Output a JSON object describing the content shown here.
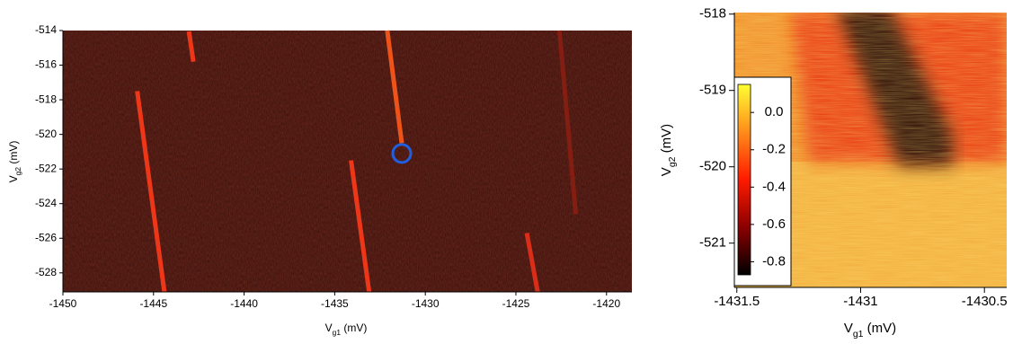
{
  "chart_data": [
    {
      "type": "heatmap",
      "xlabel": {
        "main": "V",
        "sub": "g1",
        "unit": " (mV)"
      },
      "ylabel": {
        "main": "V",
        "sub": "g2",
        "unit": " (mV)"
      },
      "xlim": [
        -1450,
        -1418.6
      ],
      "ylim": [
        -529.1,
        -514
      ],
      "xticks": [
        -1450,
        -1445,
        -1440,
        -1435,
        -1430,
        -1425,
        -1420
      ],
      "yticks": [
        -528,
        -526,
        -524,
        -522,
        -520,
        -518,
        -516,
        -514
      ],
      "background": "#3a100b",
      "stripes": [
        {
          "x": [
            -1443.05,
            -1442.8
          ],
          "y": [
            -514.05,
            -515.8
          ],
          "color": "#ff3a1a"
        },
        {
          "x": [
            -1445.9,
            -1444.4
          ],
          "y": [
            -517.5,
            -529.1
          ],
          "color": "#ff3a1a"
        },
        {
          "x": [
            -1432.1,
            -1431.3
          ],
          "y": [
            -514,
            -520.5
          ],
          "color": "#ff5a1a"
        },
        {
          "x": [
            -1434.1,
            -1433.1
          ],
          "y": [
            -521.5,
            -529.1
          ],
          "color": "#ff3a1a"
        },
        {
          "x": [
            -1422.6,
            -1421.7
          ],
          "y": [
            -514,
            -524.6
          ],
          "color": "#8a1e12"
        },
        {
          "x": [
            -1424.4,
            -1423.8
          ],
          "y": [
            -525.7,
            -529.1
          ],
          "color": "#e8301a"
        }
      ],
      "marker": {
        "x": -1431.3,
        "y": -521.1,
        "color": "#1f5fe0"
      }
    },
    {
      "type": "heatmap",
      "xlabel": {
        "main": "V",
        "sub": "g1",
        "unit": " (mV)"
      },
      "ylabel": {
        "main": "V",
        "sub": "g2",
        "unit": " (mV)"
      },
      "xlim": [
        -1431.51,
        -1430.41
      ],
      "ylim": [
        -521.58,
        -517.98
      ],
      "xticks": [
        -1431.5,
        -1431,
        -1430.5
      ],
      "yticks": [
        -521,
        -520,
        -519,
        -518
      ],
      "colorbar": {
        "lim": [
          -0.87,
          0.15
        ],
        "ticks": [
          -0.8,
          -0.6,
          -0.4,
          -0.2,
          {
            "value": 0,
            "label": "0.0"
          }
        ],
        "colors": [
          "#000000",
          "#8b0000",
          "#ff1a00",
          "#ff8c1a",
          "#ffff33"
        ]
      }
    }
  ]
}
